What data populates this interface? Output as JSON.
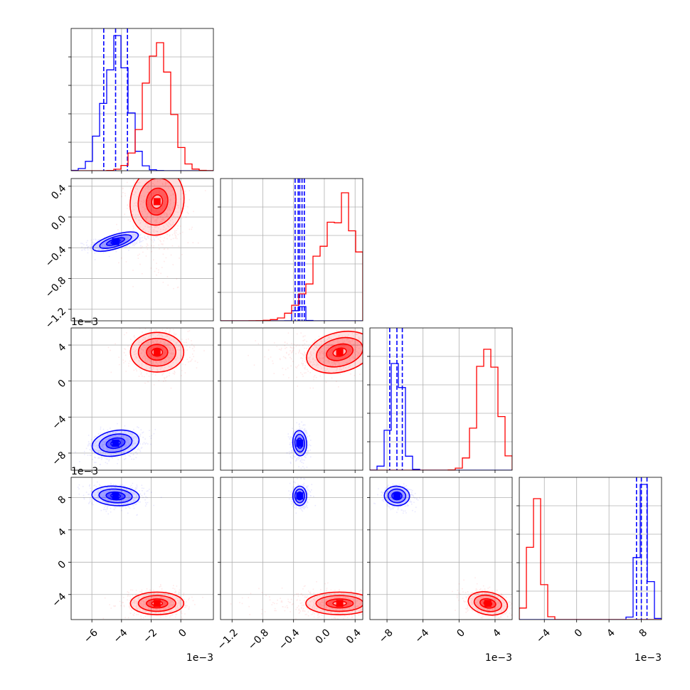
{
  "chart_data": {
    "type": "corner",
    "n_params": 4,
    "grid": true,
    "colors": {
      "blue": "#0000ff",
      "red": "#ff0000"
    },
    "params": [
      {
        "range": [
          -0.0074,
          0.0022
        ],
        "ticks": [
          -6,
          -4,
          -2,
          0
        ],
        "tick_labels": [
          "−6",
          "−4",
          "−2",
          "0"
        ],
        "tick_scale": 0.001,
        "offset_text": "1e−3"
      },
      {
        "range": [
          -1.35,
          0.5
        ],
        "ticks": [
          -1.2,
          -0.8,
          -0.4,
          0.0,
          0.4
        ],
        "tick_labels": [
          "−1.2",
          "−0.8",
          "−0.4",
          "0.0",
          "0.4"
        ],
        "tick_scale": 1,
        "offset_text": ""
      },
      {
        "range": [
          -0.0099,
          0.0059
        ],
        "ticks": [
          -8,
          -4,
          0,
          4
        ],
        "tick_labels": [
          "−8",
          "−4",
          "0",
          "4"
        ],
        "tick_scale": 0.001,
        "offset_text": "1e−3"
      },
      {
        "range": [
          -0.0071,
          0.0105
        ],
        "ticks": [
          -4,
          0,
          4,
          8
        ],
        "tick_labels": [
          "−4",
          "0",
          "4",
          "8"
        ],
        "tick_scale": 0.001,
        "offset_text": "1e−3"
      }
    ],
    "series": [
      {
        "color": "#0000ff",
        "means": [
          -0.0044,
          -0.32,
          -0.0069,
          0.0082
        ],
        "sds": [
          0.0008,
          0.045,
          0.0007,
          0.0006
        ],
        "quantile_lines": [
          [
            -0.0052,
            -0.0044,
            -0.0036
          ],
          [
            -0.38,
            -0.34,
            -0.32,
            -0.29,
            -0.26
          ],
          [
            -0.0077,
            -0.0069,
            -0.0063
          ],
          [
            0.0074,
            0.008,
            0.0087
          ]
        ],
        "hist_peaks": [
          0.95,
          0.1,
          0.75,
          0.95
        ],
        "correlations": [
          [
            0,
            1,
            0.5
          ],
          [
            0,
            2,
            0.3
          ],
          [
            0,
            3,
            -0.1
          ],
          [
            1,
            2,
            0.1
          ],
          [
            1,
            3,
            0.0
          ],
          [
            2,
            3,
            -0.1
          ]
        ]
      },
      {
        "color": "#ff0000",
        "means": [
          -0.0016,
          0.2,
          0.0032,
          -0.0051
        ],
        "sds": [
          0.0009,
          0.22,
          0.0011,
          0.0007
        ],
        "quantile_lines": [],
        "hist_peaks": [
          0.9,
          0.9,
          0.85,
          0.85
        ],
        "correlations": [
          [
            0,
            1,
            -0.3
          ],
          [
            0,
            2,
            0.0
          ],
          [
            0,
            3,
            0.0
          ],
          [
            1,
            2,
            0.4
          ],
          [
            1,
            3,
            0.0
          ],
          [
            2,
            3,
            -0.3
          ]
        ]
      }
    ]
  }
}
